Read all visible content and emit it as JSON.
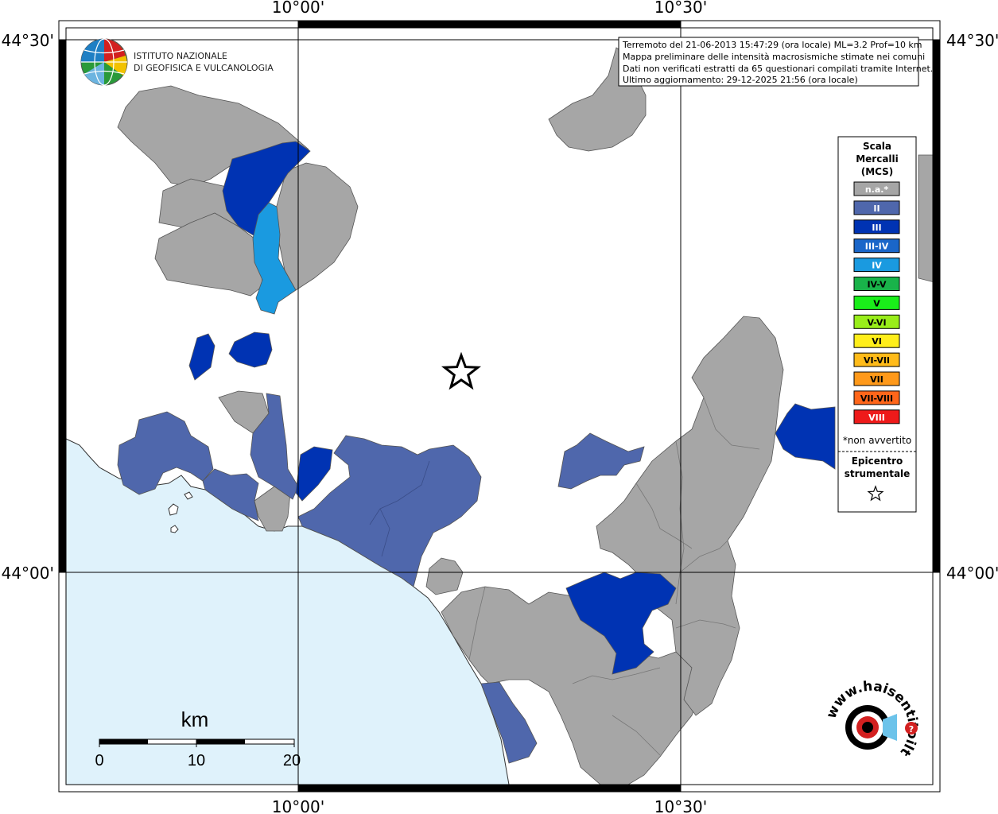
{
  "map": {
    "ticks": {
      "lon_top": [
        "10°00'",
        "10°30'"
      ],
      "lon_bottom": [
        "10°00'",
        "10°30'"
      ],
      "lat_left": [
        "44°30'",
        "44°00'"
      ],
      "lat_right": [
        "44°30'",
        "44°00'"
      ]
    },
    "info_lines": [
      "Terremoto del 21-06-2013 15:47:29 (ora locale) ML=3.2 Prof=10 km",
      "Mappa preliminare delle intensità macrosismiche stimate nei comuni",
      "Dati non verificati estratti da 65 questionari compilati tramite Internet.",
      "Ultimo aggiornamento: 29-12-2025 21:56 (ora locale)"
    ],
    "org_logo": {
      "line1": "ISTITUTO NAZIONALE",
      "line2": "DI GEOFISICA E VULCANOLOGIA"
    },
    "legend": {
      "title": [
        "Scala",
        "Mercalli",
        "(MCS)"
      ],
      "items": [
        {
          "label": "n.a.*",
          "color": "#a6a6a6",
          "text_color": "#ffffff"
        },
        {
          "label": "II",
          "color": "#4f67ac",
          "text_color": "#ffffff"
        },
        {
          "label": "III",
          "color": "#0033b3",
          "text_color": "#ffffff"
        },
        {
          "label": "III-IV",
          "color": "#1a66c9",
          "text_color": "#ffffff"
        },
        {
          "label": "IV",
          "color": "#1a9ae0",
          "text_color": "#ffffff"
        },
        {
          "label": "IV-V",
          "color": "#19b34a",
          "text_color": "#000000"
        },
        {
          "label": "V",
          "color": "#1aee1a",
          "text_color": "#000000"
        },
        {
          "label": "V-VI",
          "color": "#99ee1a",
          "text_color": "#000000"
        },
        {
          "label": "VI",
          "color": "#ffee1a",
          "text_color": "#000000"
        },
        {
          "label": "VI-VII",
          "color": "#ffbb1a",
          "text_color": "#000000"
        },
        {
          "label": "VII",
          "color": "#ff991a",
          "text_color": "#000000"
        },
        {
          "label": "VII-VIII",
          "color": "#ff661a",
          "text_color": "#000000"
        },
        {
          "label": "VIII",
          "color": "#ee1a1a",
          "text_color": "#ffffff"
        }
      ],
      "note": "*non avvertito",
      "epicenter": [
        "Epicentro",
        "strumentale"
      ]
    },
    "scalebar": {
      "unit": "km",
      "labels": [
        "0",
        "10",
        "20"
      ]
    },
    "hsit_logo": {
      "text": "www.haisentitoilterremoto.it"
    },
    "colors": {
      "sea": "#dff2fb",
      "land": "#ffffff",
      "na": "#a6a6a6",
      "ii": "#4f67ac",
      "iii": "#0033b3",
      "iv": "#1a9ae0"
    }
  }
}
